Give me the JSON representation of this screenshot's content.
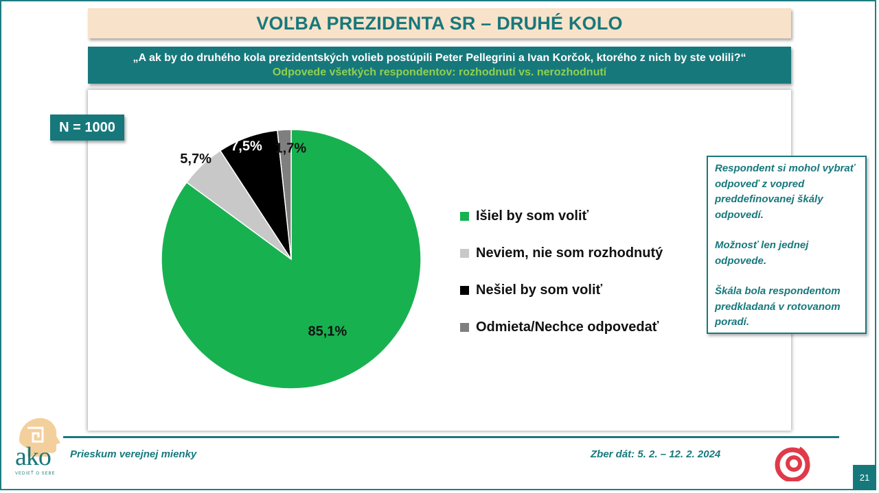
{
  "title": "VOĽBA PREZIDENTA SR – DRUHÉ KOLO",
  "question": "„A ak by do druhého kola prezidentských volieb postúpili Peter Pellegrini a Ivan Korčok, ktorého z nich by ste volili?“",
  "subtitle": "Odpovede všetkých respondentov: rozhodnutí vs. nerozhodnutí",
  "sample_size": "N = 1000",
  "notes": [
    "Respondent si mohol vybrať odpoveď z vopred preddefinovanej škály odpovedí.",
    "Možnosť len jednej odpovede.",
    "Škála bola respondentom predkladaná v rotovanom poradí."
  ],
  "footer": {
    "left": "Prieskum verejnej mienky",
    "right": "Zber dát: 5. 2. – 12. 2. 2024",
    "page": "21"
  },
  "logo": {
    "name": "ako",
    "tagline": "VEDIEŤ O SEBE"
  },
  "chart_data": {
    "type": "pie",
    "title": "",
    "categories": [
      "Išiel by som voliť",
      "Neviem, nie som rozhodnutý",
      "Nešiel by som voliť",
      "Odmieta/Nechce odpovedať"
    ],
    "values": [
      85.1,
      5.7,
      7.5,
      1.7
    ],
    "labels": [
      "85,1%",
      "5,7%",
      "7,5%",
      "1,7%"
    ],
    "colors": [
      "#18b150",
      "#c8c8c8",
      "#000000",
      "#7f7f7f"
    ],
    "legend_position": "right",
    "start_angle": "12 o'clock",
    "direction": "clockwise"
  }
}
